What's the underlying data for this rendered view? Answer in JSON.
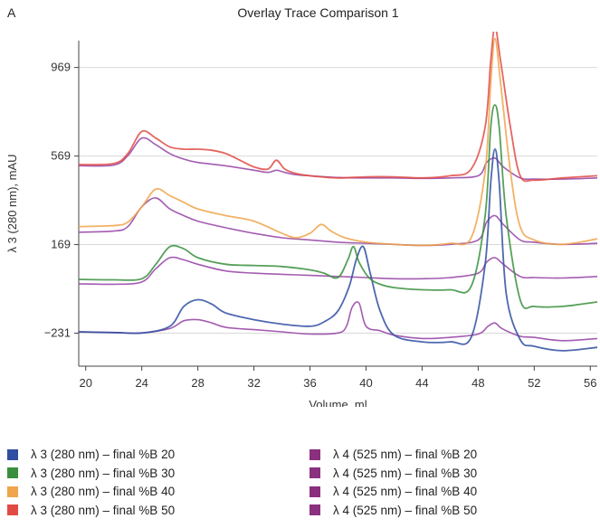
{
  "panel_label": "A",
  "chart_data": {
    "type": "line",
    "title": "Overlay Trace Comparison 1",
    "xlabel": "Volume, ml",
    "ylabel": "λ 3 (280 nm), mAU",
    "xlim": [
      19.5,
      56.5
    ],
    "ylim": [
      -380,
      1090
    ],
    "xticks": [
      20,
      24,
      28,
      32,
      36,
      40,
      44,
      48,
      52,
      56
    ],
    "yticks": [
      969,
      569,
      169,
      -231
    ],
    "ytick_labels": [
      "969",
      "569",
      "169",
      "−231"
    ],
    "grid": true,
    "legend_position": "bottom",
    "series": [
      {
        "name": "λ 3 (280 nm) – final %B 20",
        "color": "#2f4ea1",
        "x": [
          19.5,
          22,
          24,
          26,
          27,
          28,
          29,
          30,
          32,
          34,
          36,
          37,
          38,
          38.8,
          39.3,
          39.8,
          40.3,
          41,
          42,
          44,
          46,
          47.5,
          48.5,
          48.9,
          49.2,
          49.5,
          50,
          51,
          52,
          54,
          56.5
        ],
        "y": [
          -225,
          -228,
          -230,
          -200,
          -110,
          -80,
          -100,
          -140,
          -170,
          -190,
          -200,
          -180,
          -130,
          -20,
          100,
          160,
          40,
          -130,
          -240,
          -270,
          -270,
          -250,
          80,
          450,
          600,
          450,
          -50,
          -260,
          -290,
          -310,
          -295
        ]
      },
      {
        "name": "λ 3 (280 nm) – final %B 30",
        "color": "#3a8f3e",
        "x": [
          19.5,
          22,
          24,
          25,
          26,
          27,
          28,
          30,
          32,
          34,
          36,
          37,
          38,
          38.7,
          39.1,
          39.5,
          40.2,
          41,
          42,
          44,
          46,
          47.5,
          48.5,
          48.9,
          49.2,
          49.5,
          50,
          51,
          52,
          54,
          56.5
        ],
        "y": [
          12,
          10,
          15,
          80,
          160,
          150,
          110,
          80,
          75,
          70,
          55,
          40,
          20,
          100,
          160,
          90,
          20,
          -10,
          -25,
          -35,
          -35,
          -20,
          300,
          700,
          800,
          700,
          300,
          -80,
          -110,
          -110,
          -90
        ]
      },
      {
        "name": "λ 3 (280 nm) – final %B 40",
        "color": "#f0a44c",
        "x": [
          19.5,
          22,
          23,
          24,
          25,
          26,
          27,
          28,
          30,
          32,
          34,
          35,
          36,
          36.8,
          37.5,
          38.5,
          40,
          42,
          44,
          46,
          47.5,
          48.5,
          48.9,
          49.2,
          49.6,
          50.3,
          51,
          52,
          54,
          56.5
        ],
        "y": [
          250,
          255,
          270,
          340,
          420,
          390,
          360,
          330,
          300,
          275,
          220,
          200,
          220,
          260,
          230,
          200,
          180,
          170,
          165,
          175,
          200,
          500,
          900,
          1100,
          900,
          500,
          250,
          190,
          170,
          195
        ]
      },
      {
        "name": "λ 3 (280 nm) – final %B 50",
        "color": "#e24a44",
        "x": [
          19.5,
          22,
          23,
          24,
          25,
          26,
          27,
          28,
          29,
          30,
          31,
          32,
          33,
          33.6,
          34.2,
          35,
          36,
          38,
          40,
          42,
          44,
          46,
          47.5,
          48.5,
          48.9,
          49.2,
          49.6,
          50.3,
          51,
          52,
          54,
          56.5
        ],
        "y": [
          530,
          535,
          580,
          680,
          650,
          610,
          600,
          600,
          595,
          580,
          550,
          520,
          510,
          550,
          510,
          490,
          480,
          470,
          475,
          475,
          470,
          480,
          510,
          700,
          1000,
          1150,
          1000,
          700,
          480,
          460,
          470,
          480
        ]
      },
      {
        "name": "λ 4 (525 nm) – final %B 20",
        "color": "#9a4aa8",
        "x": [
          19.5,
          22,
          24,
          26,
          27,
          28,
          29,
          30,
          32,
          34,
          36,
          38,
          38.6,
          39,
          39.5,
          40,
          41,
          42,
          44,
          46,
          48,
          48.7,
          49.2,
          49.7,
          51,
          52,
          54,
          56.5
        ],
        "y": [
          -225,
          -228,
          -230,
          -210,
          -175,
          -170,
          -185,
          -205,
          -215,
          -225,
          -235,
          -230,
          -200,
          -115,
          -95,
          -200,
          -220,
          -240,
          -255,
          -250,
          -235,
          -200,
          -185,
          -210,
          -245,
          -250,
          -265,
          -255
        ]
      },
      {
        "name": "λ 4 (525 nm) – final %B 30",
        "color": "#9a4aa8",
        "x": [
          19.5,
          22,
          24,
          25,
          26,
          27,
          28,
          30,
          32,
          34,
          36,
          38,
          40,
          42,
          44,
          46,
          48,
          48.6,
          49.2,
          49.8,
          51,
          52,
          54,
          56.5
        ],
        "y": [
          -8,
          -10,
          0,
          60,
          110,
          100,
          80,
          50,
          40,
          35,
          30,
          25,
          20,
          15,
          15,
          20,
          40,
          90,
          110,
          80,
          25,
          20,
          18,
          25
        ]
      },
      {
        "name": "λ 4 (525 nm) – final %B 40",
        "color": "#9a4aa8",
        "x": [
          19.5,
          22,
          23,
          24,
          25,
          26,
          27,
          28,
          30,
          32,
          34,
          36,
          38,
          40,
          42,
          44,
          46,
          48,
          48.6,
          49.2,
          49.8,
          51,
          52,
          54,
          56.5
        ],
        "y": [
          225,
          230,
          250,
          340,
          380,
          330,
          300,
          275,
          245,
          220,
          200,
          190,
          180,
          175,
          170,
          165,
          170,
          190,
          270,
          300,
          260,
          190,
          180,
          170,
          175
        ]
      },
      {
        "name": "λ 4 (525 nm) – final %B 50",
        "color": "#9a4aa8",
        "x": [
          19.5,
          22,
          23,
          24,
          25,
          26,
          27,
          28,
          30,
          32,
          33,
          33.6,
          34.2,
          35,
          36,
          38,
          40,
          42,
          44,
          46,
          48,
          48.6,
          49.2,
          49.8,
          51,
          52,
          54,
          56.5
        ],
        "y": [
          525,
          528,
          570,
          650,
          620,
          580,
          555,
          540,
          525,
          505,
          495,
          505,
          495,
          485,
          480,
          472,
          470,
          470,
          468,
          470,
          480,
          540,
          560,
          520,
          470,
          465,
          465,
          470
        ]
      }
    ]
  },
  "legend": {
    "items": [
      {
        "label": "λ 3 (280 nm) – final %B 20",
        "color": "#2f4ea1"
      },
      {
        "label": "λ 3 (280 nm) – final %B 30",
        "color": "#3a8f3e"
      },
      {
        "label": "λ 3 (280 nm) – final %B 40",
        "color": "#f0a44c"
      },
      {
        "label": "λ 3 (280 nm) – final %B 50",
        "color": "#e24a44"
      },
      {
        "label": "λ 4 (525 nm) – final %B 20",
        "color": "#8b2f7f"
      },
      {
        "label": "λ 4 (525 nm) – final %B 30",
        "color": "#8b2f7f"
      },
      {
        "label": "λ 4 (525 nm) – final %B 40",
        "color": "#8b2f7f"
      },
      {
        "label": "λ 4 (525 nm) – final %B 50",
        "color": "#8b2f7f"
      }
    ]
  }
}
